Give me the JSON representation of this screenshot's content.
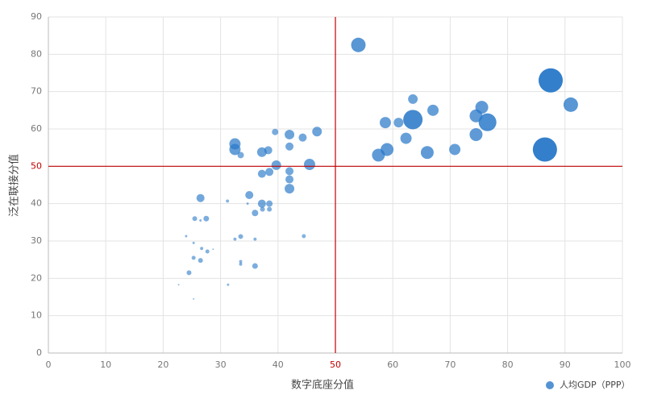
{
  "chart_data": {
    "type": "bubble",
    "x_label": "数字底座分值",
    "y_label": "泛在联接分值",
    "xlim": [
      0,
      100
    ],
    "ylim": [
      0,
      90
    ],
    "xticks": [
      0,
      10,
      20,
      30,
      40,
      50,
      60,
      70,
      80,
      90,
      100
    ],
    "yticks": [
      0,
      10,
      20,
      30,
      40,
      50,
      60,
      70,
      80,
      90
    ],
    "grid": true,
    "ref_lines": {
      "x": 50,
      "y": 50,
      "color": "#c00000"
    },
    "legend": "bottom-right",
    "x": [
      54,
      87.5,
      91,
      86.5,
      63.5,
      67,
      75.5,
      74.5,
      76.5,
      63.5,
      58.7,
      61,
      62.3,
      74.5,
      59,
      57.5,
      66,
      70.8,
      46.8,
      39.5,
      42,
      44.3,
      32.5,
      32.5,
      42,
      37.2,
      38.3,
      33.5,
      39.7,
      45.5,
      37.2,
      38.5,
      42,
      42,
      42,
      35,
      26.5,
      31.2,
      37.2,
      38.5,
      34.7,
      37.3,
      38.5,
      36,
      25.5,
      27.5,
      26.5,
      33.5,
      32.5,
      36,
      44.5,
      24,
      25.3,
      26.7,
      27.7,
      28.7,
      25.3,
      26.5,
      33.5,
      33.5,
      36,
      24.5,
      22.7,
      31.3,
      25.3
    ],
    "series": [
      {
        "name": "人均GDP（PPP）",
        "color": "#2878c8",
        "values": [
          82.5,
          73,
          66.5,
          54.5,
          68,
          65,
          65.8,
          63.5,
          61.8,
          62.5,
          61.7,
          61.7,
          57.5,
          58.5,
          54.5,
          53,
          53.7,
          54.5,
          59.3,
          59.2,
          58.5,
          57.7,
          56,
          54.5,
          55.3,
          53.8,
          54.3,
          53,
          50.3,
          50.5,
          48,
          48.5,
          48.7,
          46.5,
          44,
          42.3,
          41.5,
          40.7,
          40,
          40,
          40,
          38.5,
          38.5,
          37.5,
          36,
          36,
          35.5,
          31.2,
          30.5,
          30.5,
          31.3,
          31.3,
          29.5,
          28,
          27.2,
          27.8,
          25.5,
          24.8,
          24.5,
          23.8,
          23.3,
          21.5,
          18.3,
          18.3,
          14.5
        ],
        "sizes": [
          43,
          120,
          43,
          120,
          19,
          26,
          34,
          34,
          64.5,
          77,
          26,
          19,
          26,
          34,
          34,
          34,
          34,
          26,
          19,
          8.5,
          19,
          13.3,
          26,
          26,
          13.3,
          19,
          13.3,
          8.5,
          19,
          26,
          13.3,
          13.3,
          13.3,
          13.3,
          19,
          13.3,
          13.3,
          2.1,
          13.3,
          8.5,
          1.2,
          4.8,
          4.8,
          8.5,
          4.8,
          6.5,
          1.2,
          4.8,
          2.1,
          2.1,
          3.3,
          1.2,
          1.2,
          2.1,
          3.3,
          0.5,
          3.3,
          4.8,
          2.1,
          2.1,
          6.5,
          4.8,
          0.5,
          1.2,
          0.5
        ]
      }
    ]
  }
}
